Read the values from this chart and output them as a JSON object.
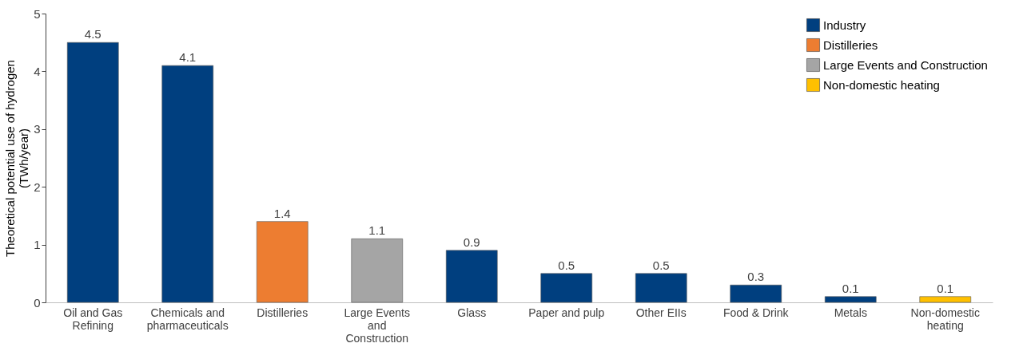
{
  "chart_data": {
    "type": "bar",
    "ylabel": "Theoretical potential use of hydrogen (TWh/year)",
    "categories": [
      "Oil and Gas Refining",
      "Chemicals and pharmaceuticals",
      "Distilleries",
      "Large Events and Construction",
      "Glass",
      "Paper and pulp",
      "Other EIIs",
      "Food & Drink",
      "Metals",
      "Non-domestic heating"
    ],
    "series": [
      {
        "name": "Industry",
        "color": "#003f7f",
        "values": [
          4.5,
          4.1,
          null,
          null,
          0.9,
          0.5,
          0.5,
          0.3,
          0.1,
          null
        ]
      },
      {
        "name": "Distilleries",
        "color": "#ed7d31",
        "values": [
          null,
          null,
          1.4,
          null,
          null,
          null,
          null,
          null,
          null,
          null
        ]
      },
      {
        "name": "Large Events and Construction",
        "color": "#a5a5a5",
        "values": [
          null,
          null,
          null,
          1.1,
          null,
          null,
          null,
          null,
          null,
          null
        ]
      },
      {
        "name": "Non-domestic heating",
        "color": "#ffc000",
        "values": [
          null,
          null,
          null,
          null,
          null,
          null,
          null,
          null,
          null,
          0.1
        ]
      }
    ],
    "ylim": [
      0,
      5
    ],
    "yticks": [
      0,
      1,
      2,
      3,
      4,
      5
    ],
    "grid": false,
    "legend": "top right",
    "data_labels": true
  }
}
